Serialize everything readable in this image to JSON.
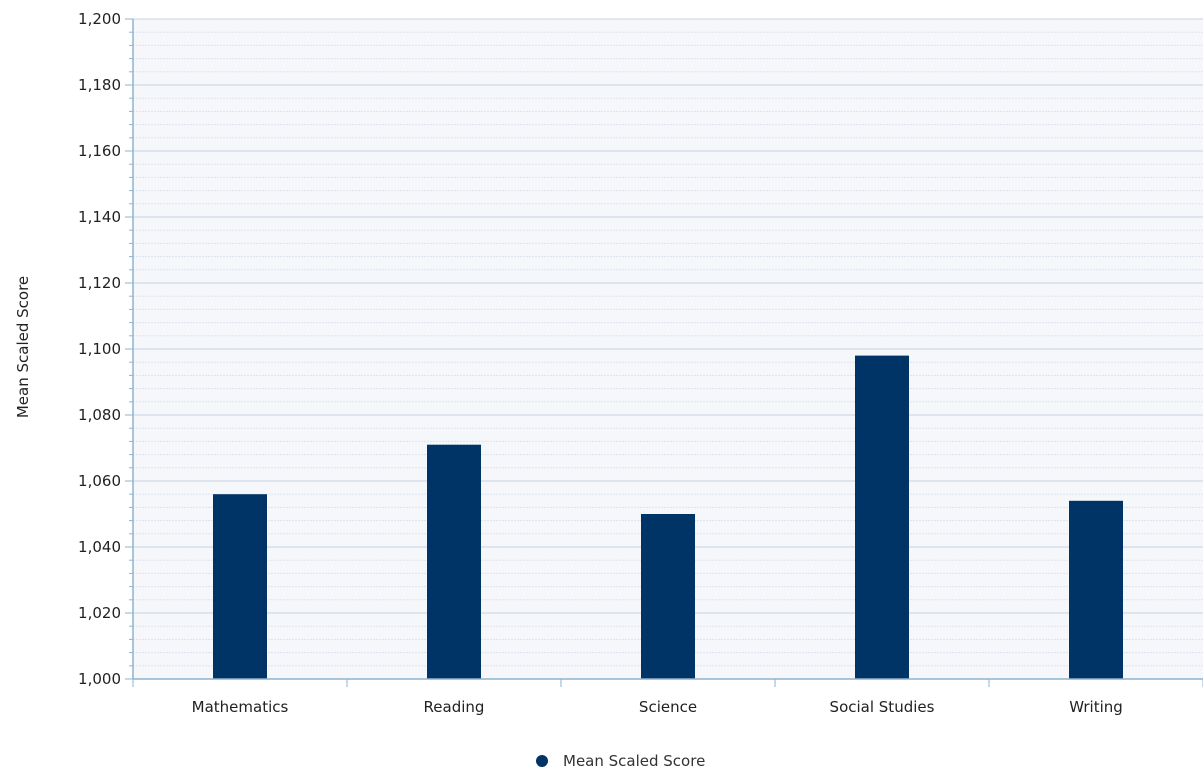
{
  "chart_data": {
    "type": "bar",
    "categories": [
      "Mathematics",
      "Reading",
      "Science",
      "Social Studies",
      "Writing"
    ],
    "series": [
      {
        "name": "Mean Scaled Score",
        "values": [
          1056,
          1071,
          1050,
          1098,
          1054
        ]
      }
    ],
    "title": "",
    "xlabel": "",
    "ylabel": "Mean Scaled Score",
    "ylim": [
      1000,
      1200
    ],
    "y_ticks": [
      1000,
      1020,
      1040,
      1060,
      1080,
      1100,
      1120,
      1140,
      1160,
      1180,
      1200
    ],
    "y_tick_labels": [
      "1,000",
      "1,020",
      "1,040",
      "1,060",
      "1,080",
      "1,100",
      "1,120",
      "1,140",
      "1,160",
      "1,180",
      "1,200"
    ],
    "grid": true,
    "legend": {
      "position": "bottom-center",
      "entries": [
        "Mean Scaled Score"
      ]
    },
    "colors": {
      "bar": "#003366",
      "plot_background": "#f5f7fb",
      "grid_major": "#c9d3e0",
      "grid_minor": "#dde4ee",
      "axis": "#8fb3cf"
    }
  }
}
